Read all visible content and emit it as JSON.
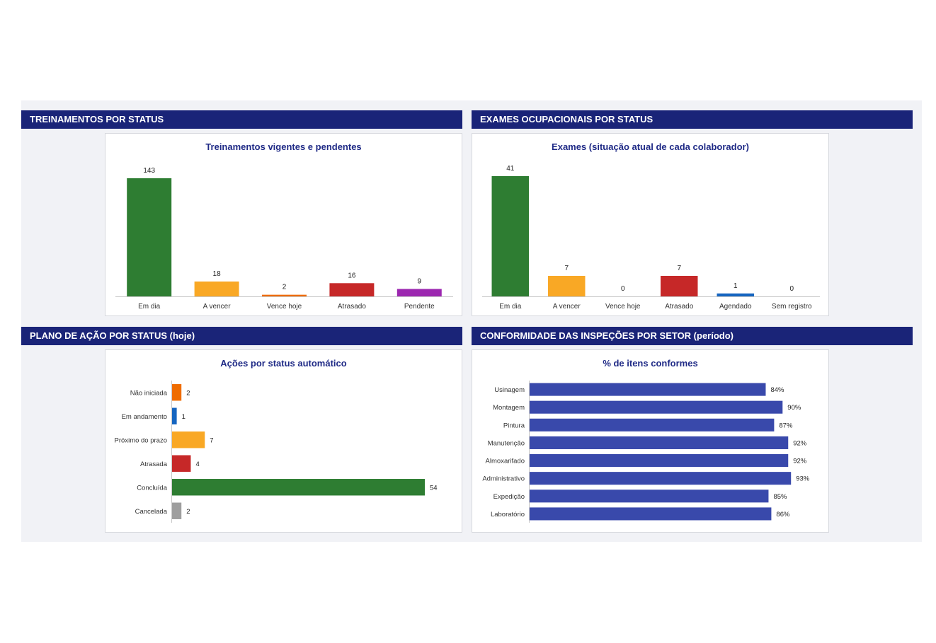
{
  "panels": {
    "training": {
      "header": "TREINAMENTOS POR STATUS"
    },
    "exams": {
      "header": "EXAMES OCUPACIONAIS POR STATUS"
    },
    "actions": {
      "header": "PLANO DE AÇÃO POR STATUS (hoje)"
    },
    "inspections": {
      "header": "CONFORMIDADE DAS INSPEÇÕES POR SETOR (período)"
    }
  },
  "chart_data": [
    {
      "type": "bar",
      "title": "Treinamentos vigentes e pendentes",
      "categories": [
        "Em dia",
        "A vencer",
        "Vence hoje",
        "Atrasado",
        "Pendente"
      ],
      "values": [
        143,
        18,
        2,
        16,
        9
      ],
      "colors": [
        "#2e7d32",
        "#f9a825",
        "#ef6c00",
        "#c62828",
        "#9c27b0"
      ],
      "ylim": [
        0,
        143
      ],
      "grid": false,
      "xlabel": "",
      "ylabel": ""
    },
    {
      "type": "bar",
      "title": "Exames (situação atual de cada colaborador)",
      "categories": [
        "Em dia",
        "A vencer",
        "Vence hoje",
        "Atrasado",
        "Agendado",
        "Sem registro"
      ],
      "values": [
        41,
        7,
        0,
        7,
        1,
        0
      ],
      "colors": [
        "#2e7d32",
        "#f9a825",
        "#ef6c00",
        "#c62828",
        "#1565c0",
        "#9e9e9e"
      ],
      "ylim": [
        0,
        41
      ],
      "grid": false,
      "xlabel": "",
      "ylabel": ""
    },
    {
      "type": "bar",
      "orientation": "horizontal",
      "title": "Ações por status automático",
      "categories": [
        "Não iniciada",
        "Em andamento",
        "Próximo do prazo",
        "Atrasada",
        "Concluída",
        "Cancelada"
      ],
      "values": [
        2,
        1,
        7,
        4,
        54,
        2
      ],
      "colors": [
        "#ef6c00",
        "#1565c0",
        "#f9a825",
        "#c62828",
        "#2e7d32",
        "#9e9e9e"
      ],
      "xlim": [
        0,
        54
      ],
      "grid": false,
      "xlabel": "",
      "ylabel": ""
    },
    {
      "type": "bar",
      "orientation": "horizontal",
      "title": "% de itens conformes",
      "categories": [
        "Usinagem",
        "Montagem",
        "Pintura",
        "Manutenção",
        "Almoxarifado",
        "Administrativo",
        "Expedição",
        "Laboratório"
      ],
      "values": [
        84,
        90,
        87,
        92,
        92,
        93,
        85,
        86
      ],
      "value_suffix": "%",
      "colors": [
        "#3949ab"
      ],
      "xlim": [
        0,
        100
      ],
      "grid": false,
      "xlabel": "",
      "ylabel": ""
    }
  ]
}
